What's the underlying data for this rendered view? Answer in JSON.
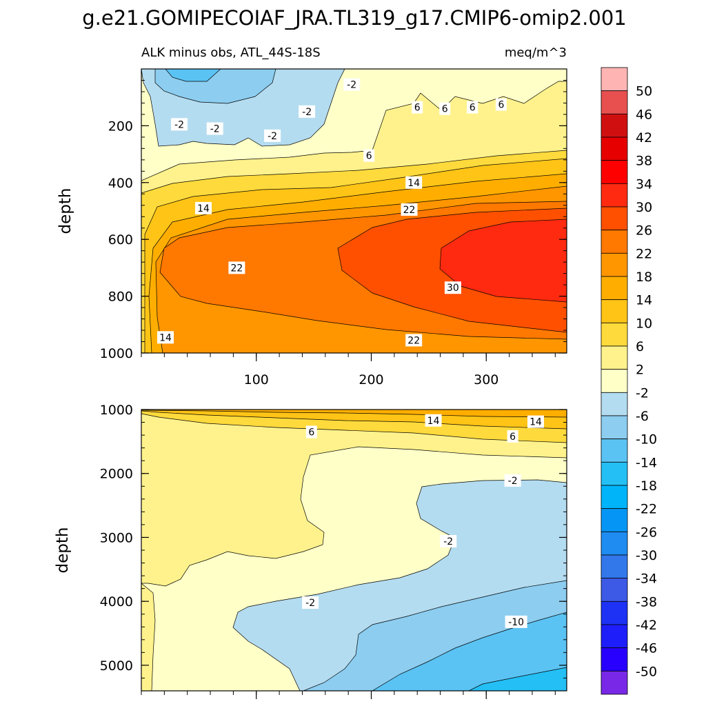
{
  "chart_data": {
    "type": "contour",
    "title": "g.e21.GOMIPECOIAF_JRA.TL319_g17.CMIP6-omip2.001",
    "subtitle_left": "ALK minus obs, ATL_44S-18S",
    "subtitle_right": "meq/m^3",
    "xlim": [
      0,
      370
    ],
    "x_ticks": [
      "100",
      "200",
      "300"
    ],
    "panels": [
      {
        "name": "upper",
        "ylabel": "depth",
        "ylim": [
          0,
          1000
        ],
        "y_ticks": [
          "200",
          "400",
          "600",
          "800",
          "1000"
        ],
        "contour_labels": [
          {
            "text": "-2",
            "x": 33,
            "y": 195
          },
          {
            "text": "-2",
            "x": 64,
            "y": 210
          },
          {
            "text": "-2",
            "x": 114,
            "y": 235
          },
          {
            "text": "-2",
            "x": 144,
            "y": 150
          },
          {
            "text": "-2",
            "x": 183,
            "y": 55
          },
          {
            "text": "6",
            "x": 240,
            "y": 135
          },
          {
            "text": "6",
            "x": 264,
            "y": 140
          },
          {
            "text": "6",
            "x": 288,
            "y": 135
          },
          {
            "text": "6",
            "x": 313,
            "y": 125
          },
          {
            "text": "6",
            "x": 198,
            "y": 305
          },
          {
            "text": "14",
            "x": 237,
            "y": 400
          },
          {
            "text": "14",
            "x": 54,
            "y": 490
          },
          {
            "text": "22",
            "x": 233,
            "y": 495
          },
          {
            "text": "22",
            "x": 83,
            "y": 700
          },
          {
            "text": "30",
            "x": 271,
            "y": 770
          },
          {
            "text": "22",
            "x": 237,
            "y": 955
          },
          {
            "text": "14",
            "x": 21,
            "y": 945
          }
        ]
      },
      {
        "name": "lower",
        "ylabel": "depth",
        "ylim": [
          1000,
          5400
        ],
        "y_ticks": [
          "1000",
          "2000",
          "3000",
          "4000",
          "5000"
        ],
        "contour_labels": [
          {
            "text": "14",
            "x": 254,
            "y": 1170
          },
          {
            "text": "14",
            "x": 343,
            "y": 1190
          },
          {
            "text": "6",
            "x": 148,
            "y": 1350
          },
          {
            "text": "6",
            "x": 323,
            "y": 1420
          },
          {
            "text": "-2",
            "x": 323,
            "y": 2110
          },
          {
            "text": "-2",
            "x": 267,
            "y": 3060
          },
          {
            "text": "-2",
            "x": 147,
            "y": 4020
          },
          {
            "text": "-10",
            "x": 326,
            "y": 4320
          }
        ]
      }
    ],
    "colorbar": {
      "labels": [
        "50",
        "46",
        "42",
        "38",
        "34",
        "30",
        "26",
        "22",
        "18",
        "14",
        "10",
        "6",
        "2",
        "-2",
        "-6",
        "-10",
        "-14",
        "-18",
        "-22",
        "-26",
        "-30",
        "-34",
        "-38",
        "-42",
        "-46",
        "-50"
      ],
      "colors": [
        "#ffb4b4",
        "#e85050",
        "#d01010",
        "#e60000",
        "#ff0000",
        "#ff2a10",
        "#ff5000",
        "#ff7800",
        "#ff9600",
        "#ffae00",
        "#ffc416",
        "#ffda3c",
        "#fff28c",
        "#ffffc8",
        "#b4dcf0",
        "#8ccdf0",
        "#5ac3f3",
        "#23bff5",
        "#00b4fa",
        "#0596f5",
        "#1e8cf0",
        "#3278eb",
        "#3c5ae6",
        "#1e32f5",
        "#1e1efa",
        "#2800ff",
        "#7828e6"
      ]
    }
  }
}
